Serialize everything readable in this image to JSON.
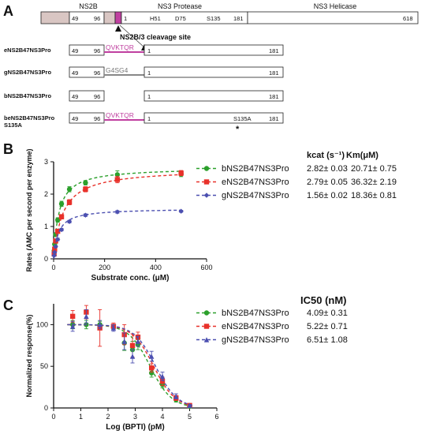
{
  "panel_a": {
    "label": "A",
    "header": {
      "ns2b": "NS2B",
      "ns3_protease": "NS3 Protease",
      "ns3_helicase": "NS3 Helicase",
      "p49": "49",
      "p96": "96",
      "p1": "1",
      "h51": "H51",
      "d75": "D75",
      "s135": "S135",
      "p181": "181",
      "p618": "618"
    },
    "cleavage_label": "NS2B/3 cleavage site",
    "constructs": [
      {
        "name": "eNS2B47NS3Pro",
        "n49": "49",
        "n96": "96",
        "linker": "QVKTQR",
        "n1": "1",
        "n181": "181"
      },
      {
        "name": "gNS2B47NS3Pro",
        "n49": "49",
        "n96": "96",
        "linker": "G4SG4",
        "n1": "1",
        "n181": "181"
      },
      {
        "name": "bNS2B47NS3Pro",
        "n49": "49",
        "n96": "96",
        "n1": "1",
        "n181": "181"
      },
      {
        "name": "beNS2B47NS3Pro",
        "name2": "S135A",
        "n49": "49",
        "n96": "96",
        "linker": "QVKTQR",
        "n1": "1",
        "mut": "S135A",
        "n181": "181",
        "star": "*"
      }
    ]
  },
  "panel_b": {
    "label": "B",
    "kcat_header": "kcat (s⁻¹)",
    "km_header": "Km(μM)",
    "table": [
      {
        "name": "bNS2B47NS3Pro",
        "kcat": "2.82± 0.03",
        "km": "20.71± 0.75"
      },
      {
        "name": "eNS2B47NS3Pro",
        "kcat": "2.79± 0.05",
        "km": "36.32± 2.19"
      },
      {
        "name": "gNS2B47NS3Pro",
        "kcat": "1.56± 0.02",
        "km": "18.36± 0.81"
      }
    ]
  },
  "panel_c": {
    "label": "C",
    "ic50_header": "IC50 (nM)",
    "table": [
      {
        "name": "bNS2B47NS3Pro",
        "ic50": "4.09± 0.31"
      },
      {
        "name": "eNS2B47NS3Pro",
        "ic50": "5.22± 0.71"
      },
      {
        "name": "gNS2B47NS3Pro",
        "ic50": "6.51± 1.08"
      }
    ]
  },
  "colors": {
    "b": "#2ca02c",
    "e": "#e8312a",
    "g": "#4b4fb0",
    "linker_e": "#c040a0",
    "linker_g": "#888888",
    "ns2b_fill": "#d9c6c3"
  },
  "chart_data": [
    {
      "type": "line",
      "xlabel": "Substrate conc. (μM)",
      "ylabel": "Rates (AMC per second per enzyme)",
      "xlim": [
        0,
        600
      ],
      "ylim": [
        0,
        3
      ],
      "xticks": [
        "0",
        "200",
        "400",
        "600"
      ],
      "yticks": [
        "0",
        "1",
        "2",
        "3"
      ],
      "series": [
        {
          "name": "bNS2B47NS3Pro",
          "marker": "circle",
          "color": "#2ca02c",
          "x": [
            2,
            4,
            8,
            16,
            31,
            62,
            125,
            250,
            500
          ],
          "y": [
            0.25,
            0.45,
            0.75,
            1.2,
            1.7,
            2.15,
            2.35,
            2.6,
            2.62
          ],
          "err": [
            0.03,
            0.04,
            0.05,
            0.07,
            0.08,
            0.08,
            0.07,
            0.12,
            0.08
          ]
        },
        {
          "name": "eNS2B47NS3Pro",
          "marker": "square",
          "color": "#e8312a",
          "x": [
            2,
            4,
            8,
            16,
            31,
            62,
            125,
            250,
            500
          ],
          "y": [
            0.15,
            0.3,
            0.55,
            0.85,
            1.3,
            1.75,
            2.15,
            2.45,
            2.65
          ],
          "err": [
            0.03,
            0.04,
            0.05,
            0.06,
            0.07,
            0.08,
            0.08,
            0.1,
            0.08
          ]
        },
        {
          "name": "gNS2B47NS3Pro",
          "marker": "diamond",
          "color": "#4b4fb0",
          "x": [
            2,
            4,
            8,
            16,
            31,
            62,
            125,
            250,
            500
          ],
          "y": [
            0.1,
            0.2,
            0.38,
            0.6,
            0.9,
            1.15,
            1.35,
            1.45,
            1.47
          ],
          "err": [
            0.02,
            0.02,
            0.03,
            0.04,
            0.04,
            0.04,
            0.04,
            0.04,
            0.03
          ]
        }
      ]
    },
    {
      "type": "line",
      "xlabel": "Log (BPTI) (pM)",
      "ylabel": "Normalized response(%)",
      "xlim": [
        0,
        6
      ],
      "ylim": [
        0,
        125
      ],
      "xticks": [
        "0",
        "1",
        "2",
        "3",
        "4",
        "5",
        "6"
      ],
      "yticks": [
        "0",
        "50",
        "100"
      ],
      "series": [
        {
          "name": "bNS2B47NS3Pro",
          "marker": "circle",
          "color": "#2ca02c",
          "x": [
            0.7,
            1.2,
            1.7,
            2.2,
            2.6,
            2.9,
            3.1,
            3.6,
            4.0,
            4.5,
            5.0
          ],
          "y": [
            100,
            100,
            100,
            97,
            78,
            70,
            76,
            42,
            28,
            10,
            2
          ],
          "err": [
            5,
            5,
            4,
            3,
            9,
            10,
            6,
            5,
            4,
            3,
            1
          ]
        },
        {
          "name": "eNS2B47NS3Pro",
          "marker": "square",
          "color": "#e8312a",
          "x": [
            0.7,
            1.2,
            1.7,
            2.2,
            2.6,
            2.9,
            3.1,
            3.6,
            4.0,
            4.5,
            5.0
          ],
          "y": [
            110,
            115,
            96,
            98,
            88,
            75,
            85,
            48,
            32,
            12,
            3
          ],
          "err": [
            7,
            8,
            22,
            4,
            12,
            14,
            6,
            5,
            5,
            3,
            1
          ]
        },
        {
          "name": "gNS2B47NS3Pro",
          "marker": "triangle",
          "color": "#4b4fb0",
          "x": [
            0.7,
            1.2,
            1.7,
            2.2,
            2.6,
            2.9,
            3.1,
            3.6,
            4.0,
            4.5,
            5.0
          ],
          "y": [
            98,
            110,
            100,
            96,
            80,
            62,
            80,
            62,
            38,
            14,
            3
          ],
          "err": [
            6,
            8,
            5,
            4,
            10,
            8,
            6,
            6,
            5,
            3,
            1
          ]
        }
      ]
    }
  ]
}
